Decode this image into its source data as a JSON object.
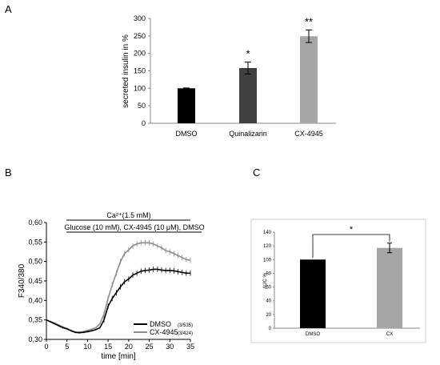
{
  "panels": {
    "a": {
      "letter": "A"
    },
    "b": {
      "letter": "B"
    },
    "c": {
      "letter": "C"
    }
  },
  "chart_data": [
    {
      "id": "A",
      "type": "bar",
      "ylabel": "secreted insulin in %",
      "ylim": [
        0,
        300
      ],
      "yticks": [
        0,
        50,
        100,
        150,
        200,
        250,
        300
      ],
      "categories": [
        "DMSO",
        "Quinalizarin",
        "CX-4945"
      ],
      "values": [
        100,
        158,
        249
      ],
      "errors": [
        1,
        17,
        18
      ],
      "significance": [
        "",
        "*",
        "**"
      ],
      "colors": [
        "#000000",
        "#404040",
        "#a6a6a6"
      ]
    },
    {
      "id": "B",
      "type": "line",
      "xlabel": "time [min]",
      "ylabel": "F340/380",
      "xlim": [
        0,
        35
      ],
      "ylim": [
        0.3,
        0.6
      ],
      "xticks": [
        0,
        5,
        10,
        15,
        20,
        25,
        30,
        35
      ],
      "yticks": [
        "0,30",
        "0,35",
        "0,40",
        "0,45",
        "0,50",
        "0,55",
        "0,60"
      ],
      "annotations": [
        "Ca²⁺(1.5 mM)",
        "Glucose (10 mM), CX-4945 (10 μM), DMSO"
      ],
      "legend_position": "bottom-right",
      "x": [
        0,
        1,
        2,
        3,
        4,
        5,
        6,
        7,
        8,
        9,
        10,
        11,
        12,
        13,
        14,
        15,
        16,
        17,
        18,
        19,
        20,
        21,
        22,
        23,
        24,
        25,
        26,
        27,
        28,
        29,
        30,
        31,
        32,
        33,
        34,
        35
      ],
      "series": [
        {
          "name": "DMSO",
          "n_label": "(3/535)",
          "color": "#000000",
          "values": [
            0.35,
            0.345,
            0.34,
            0.335,
            0.33,
            0.327,
            0.322,
            0.318,
            0.317,
            0.318,
            0.32,
            0.322,
            0.325,
            0.33,
            0.35,
            0.385,
            0.405,
            0.42,
            0.435,
            0.448,
            0.455,
            0.465,
            0.47,
            0.475,
            0.477,
            0.478,
            0.48,
            0.48,
            0.478,
            0.477,
            0.477,
            0.476,
            0.474,
            0.472,
            0.47,
            0.47
          ]
        },
        {
          "name": "CX-4945",
          "n_label": "(3/424)",
          "color": "#8c8c8c",
          "values": [
            0.35,
            0.346,
            0.342,
            0.337,
            0.332,
            0.328,
            0.323,
            0.319,
            0.318,
            0.32,
            0.323,
            0.326,
            0.33,
            0.34,
            0.365,
            0.405,
            0.44,
            0.47,
            0.5,
            0.52,
            0.53,
            0.54,
            0.545,
            0.548,
            0.548,
            0.548,
            0.545,
            0.54,
            0.535,
            0.528,
            0.525,
            0.52,
            0.515,
            0.51,
            0.505,
            0.503
          ]
        }
      ]
    },
    {
      "id": "C",
      "type": "bar",
      "ylabel": "AUC %",
      "ylim": [
        0,
        140
      ],
      "yticks": [
        0,
        20,
        40,
        60,
        80,
        100,
        120,
        140
      ],
      "categories": [
        "DMSO",
        "CX"
      ],
      "values": [
        100,
        117
      ],
      "errors": [
        0,
        7
      ],
      "significance": "*",
      "colors": [
        "#000000",
        "#a6a6a6"
      ]
    }
  ]
}
